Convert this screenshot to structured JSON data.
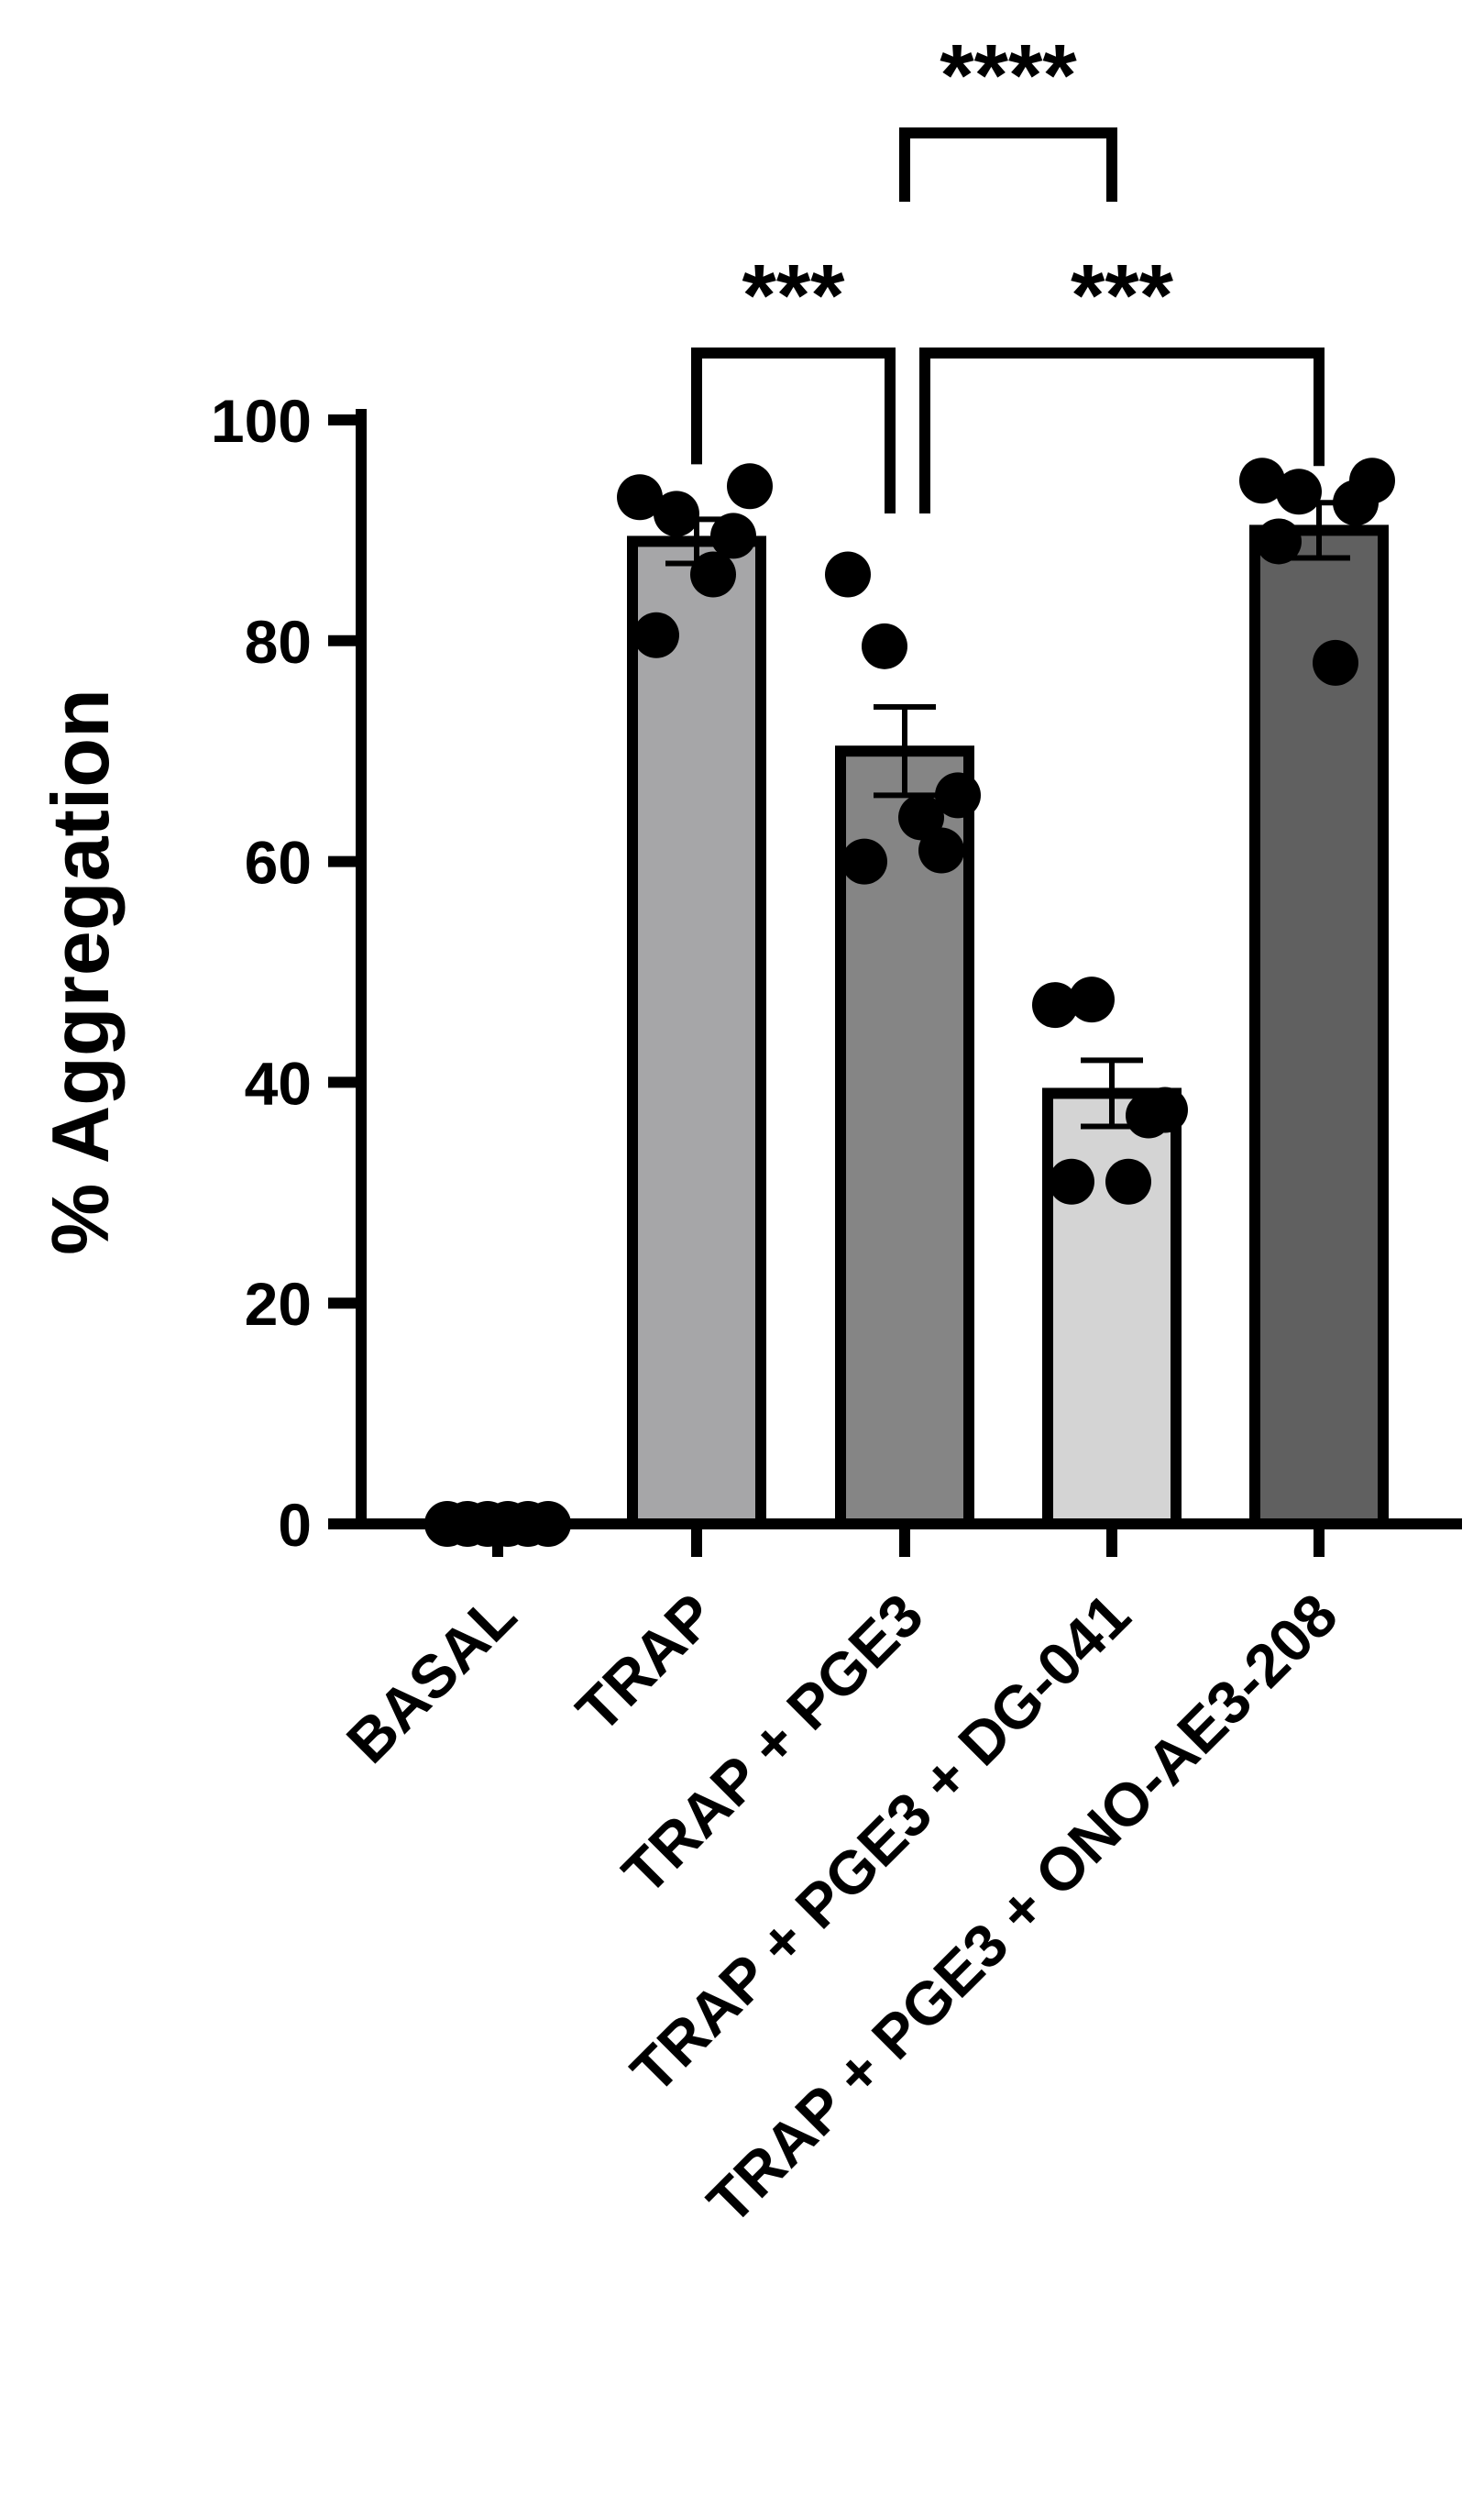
{
  "chart_data": {
    "type": "bar",
    "title": "",
    "ylabel": "% Aggregation",
    "xlabel": "",
    "ylim": [
      0,
      100
    ],
    "yticks": [
      0,
      20,
      40,
      60,
      80,
      100
    ],
    "ytick_labels": [
      "0",
      "20",
      "40",
      "60",
      "80",
      "100"
    ],
    "categories": [
      "BASAL",
      "TRAP",
      "TRAP + PGE3",
      "TRAP + PGE3 + DG-041",
      "TRAP + PGE3 + ONO-AE3-208"
    ],
    "values": [
      0,
      89,
      70,
      39,
      90
    ],
    "sem": [
      0,
      2,
      4,
      3,
      2.5
    ],
    "points": [
      [
        0,
        0,
        0,
        0,
        0,
        0
      ],
      [
        93,
        91.5,
        94,
        89.5,
        80.5,
        86
      ],
      [
        86,
        79.5,
        66,
        61,
        60,
        64
      ],
      [
        47,
        47.5,
        37.5,
        37,
        31,
        31
      ],
      [
        94.5,
        93.5,
        94.5,
        92.5,
        89,
        78
      ]
    ],
    "bar_colors": [
      "#ffffff",
      "#a6a6a8",
      "#858585",
      "#d4d4d4",
      "#606060"
    ],
    "significance": [
      {
        "from": 1,
        "to": 2,
        "label": "***"
      },
      {
        "from": 2,
        "to": 4,
        "label": "***"
      },
      {
        "from": 2,
        "to": 3,
        "label": "****"
      }
    ]
  }
}
